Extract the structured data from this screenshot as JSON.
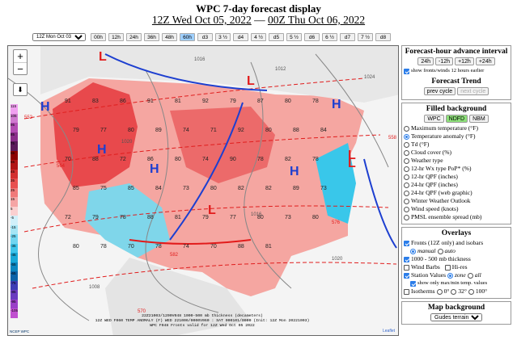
{
  "title": "WPC 7-day forecast display",
  "subtitle": {
    "start": "12Z Wed Oct 05, 2022",
    "sep": "—",
    "end": "00Z Thu Oct 06, 2022"
  },
  "hour_select": {
    "value": "12Z Mon Oct 03"
  },
  "hour_buttons": [
    "00h",
    "12h",
    "24h",
    "36h",
    "48h",
    "60h",
    "d3",
    "3 ½",
    "d4",
    "4 ½",
    "d5",
    "5 ½",
    "d6",
    "6 ½",
    "d7",
    "7 ½",
    "d8"
  ],
  "hour_selected": "60h",
  "legend": [
    "115",
    "105",
    "95",
    "85",
    "75",
    "65",
    "55",
    "45",
    "35",
    "25",
    "15",
    "5",
    "-5",
    "-15",
    "-25",
    "-35",
    "-45",
    "-55",
    "-65",
    "-75",
    "-85",
    "-95",
    "-105"
  ],
  "map": {
    "pressure_labels": [
      "L",
      "L",
      "L",
      "L",
      "H",
      "H",
      "H",
      "H",
      "H",
      "L"
    ],
    "temps": [
      "91",
      "83",
      "86",
      "91",
      "81",
      "92",
      "79",
      "87",
      "80",
      "78",
      "79",
      "77",
      "80",
      "89",
      "74",
      "71",
      "92",
      "80",
      "88",
      "84",
      "70",
      "88",
      "72",
      "86",
      "80",
      "74",
      "90",
      "78",
      "82",
      "78",
      "85",
      "75",
      "85",
      "84",
      "73",
      "80",
      "82",
      "82",
      "89",
      "73",
      "72",
      "79",
      "78",
      "88",
      "81",
      "79",
      "77",
      "80",
      "73",
      "80",
      "80",
      "78",
      "70",
      "78",
      "74",
      "70",
      "88",
      "81"
    ],
    "isobar_labels": [
      "1016",
      "1012",
      "1008",
      "1020",
      "1024",
      "1020",
      "1016"
    ],
    "thickness_labels": [
      "570",
      "576",
      "564",
      "558",
      "582",
      "552"
    ],
    "caption": [
      "22Z21003/1200V048 1000-500 mb thickness (decameters)",
      "12Z WED F060 TEMP ANOMALY (F)  WED 221006/0000V060 : SAT 000101/0000 (Init: 12Z Mon 20221003)",
      "WPC F048 Fronts valid for 12Z Wed Oct 05 2022"
    ],
    "attribution": "Leaflet",
    "logo": "NCEP WPC"
  },
  "forecast_hour": {
    "title": "Forecast-hour advance interval",
    "buttons": [
      "24h",
      "-12h",
      "+12h",
      "+24h"
    ],
    "earlier_label": "show fronts/winds 12 hours earlier",
    "earlier_checked": true
  },
  "trend": {
    "title": "Forecast Trend",
    "prev": "prev cycle",
    "next": "next cycle"
  },
  "filled": {
    "title": "Filled background",
    "sources": [
      "WPC",
      "NDFD",
      "NBM"
    ],
    "source_selected": "NDFD",
    "options": [
      "Maximum temperature (°F)",
      "Temperature anomaly (°F)",
      "Td (°F)",
      "Cloud cover (%)",
      "Weather type",
      "12-hr Wx type PoP* (%)",
      "12-hr QPF (inches)",
      "24-hr QPF (inches)",
      "24-hr QPF (web graphic)",
      "Winter Weather Outlook",
      "Wind speed (knots)",
      "PMSL ensemble spread (mb)"
    ],
    "selected_index": 1
  },
  "overlays": {
    "title": "Overlays",
    "fronts": "Fronts (12Z only) and isobars",
    "fronts_checked": true,
    "manual": "manual",
    "auto": "auto",
    "thickness": "1000 - 500 mb thickness",
    "thickness_checked": true,
    "wind": "Wind Barbs",
    "hires": "Hi-res",
    "station": "Station Values",
    "station_checked": true,
    "zone": "zone",
    "all": "all",
    "maxmin": "show only max/min temp. values",
    "maxmin_checked": true,
    "isotherms": "Isotherms",
    "iso_opts": [
      "0°",
      "32°",
      "100°"
    ]
  },
  "map_bg": {
    "title": "Map background",
    "value": "Gudes terrain"
  },
  "colors": {
    "warm": "#e8564c",
    "cold": "#2ec7e6",
    "front_blue": "#1d3fd0",
    "front_red": "#e21b1b",
    "thickness": "#e01d1d"
  }
}
